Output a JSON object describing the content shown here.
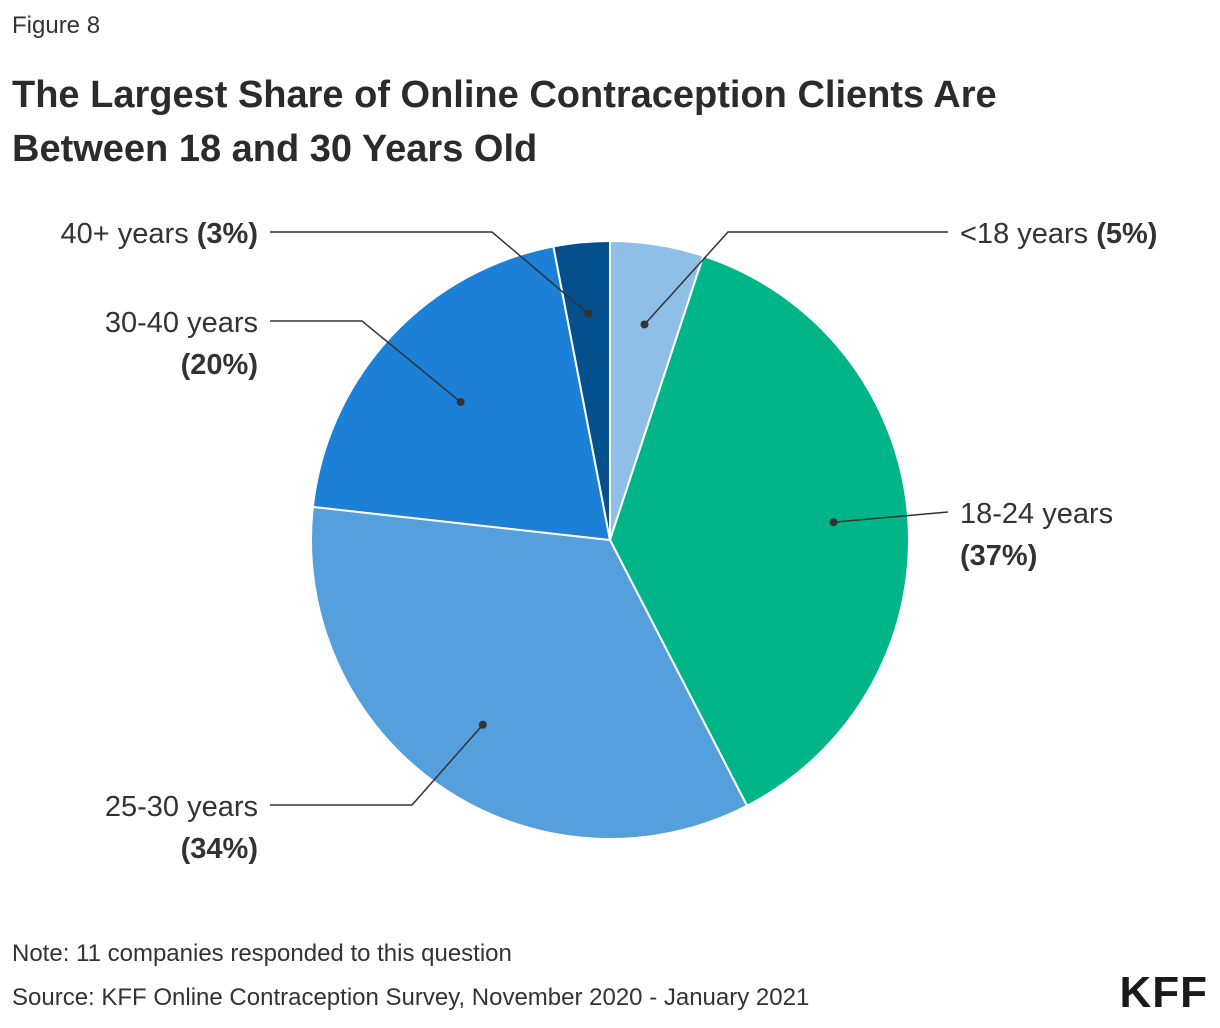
{
  "header": {
    "figure_label": "Figure 8",
    "title": "The Largest Share of Online Contraception Clients Are Between 18 and 30 Years Old"
  },
  "chart_data": {
    "type": "pie",
    "title": "The Largest Share of Online Contraception Clients Are Between 18 and 30 Years Old",
    "start": "top, clockwise",
    "slices": [
      {
        "label": "<18 years",
        "value": 5,
        "display": "5%",
        "color": "#8fbfe7"
      },
      {
        "label": "18-24 years",
        "value": 37,
        "display": "37%",
        "color": "#00b688"
      },
      {
        "label": "25-30 years",
        "value": 34,
        "display": "34%",
        "color": "#549fdc"
      },
      {
        "label": "30-40 years",
        "value": 20,
        "display": "20%",
        "color": "#1b80d6"
      },
      {
        "label": "40+ years",
        "value": 3,
        "display": "3%",
        "color": "#03508c"
      }
    ]
  },
  "footer": {
    "note": "Note: 11 companies responded to this question",
    "source": "Source: KFF Online Contraception Survey, November 2020 - January 2021",
    "logo": "KFF"
  }
}
